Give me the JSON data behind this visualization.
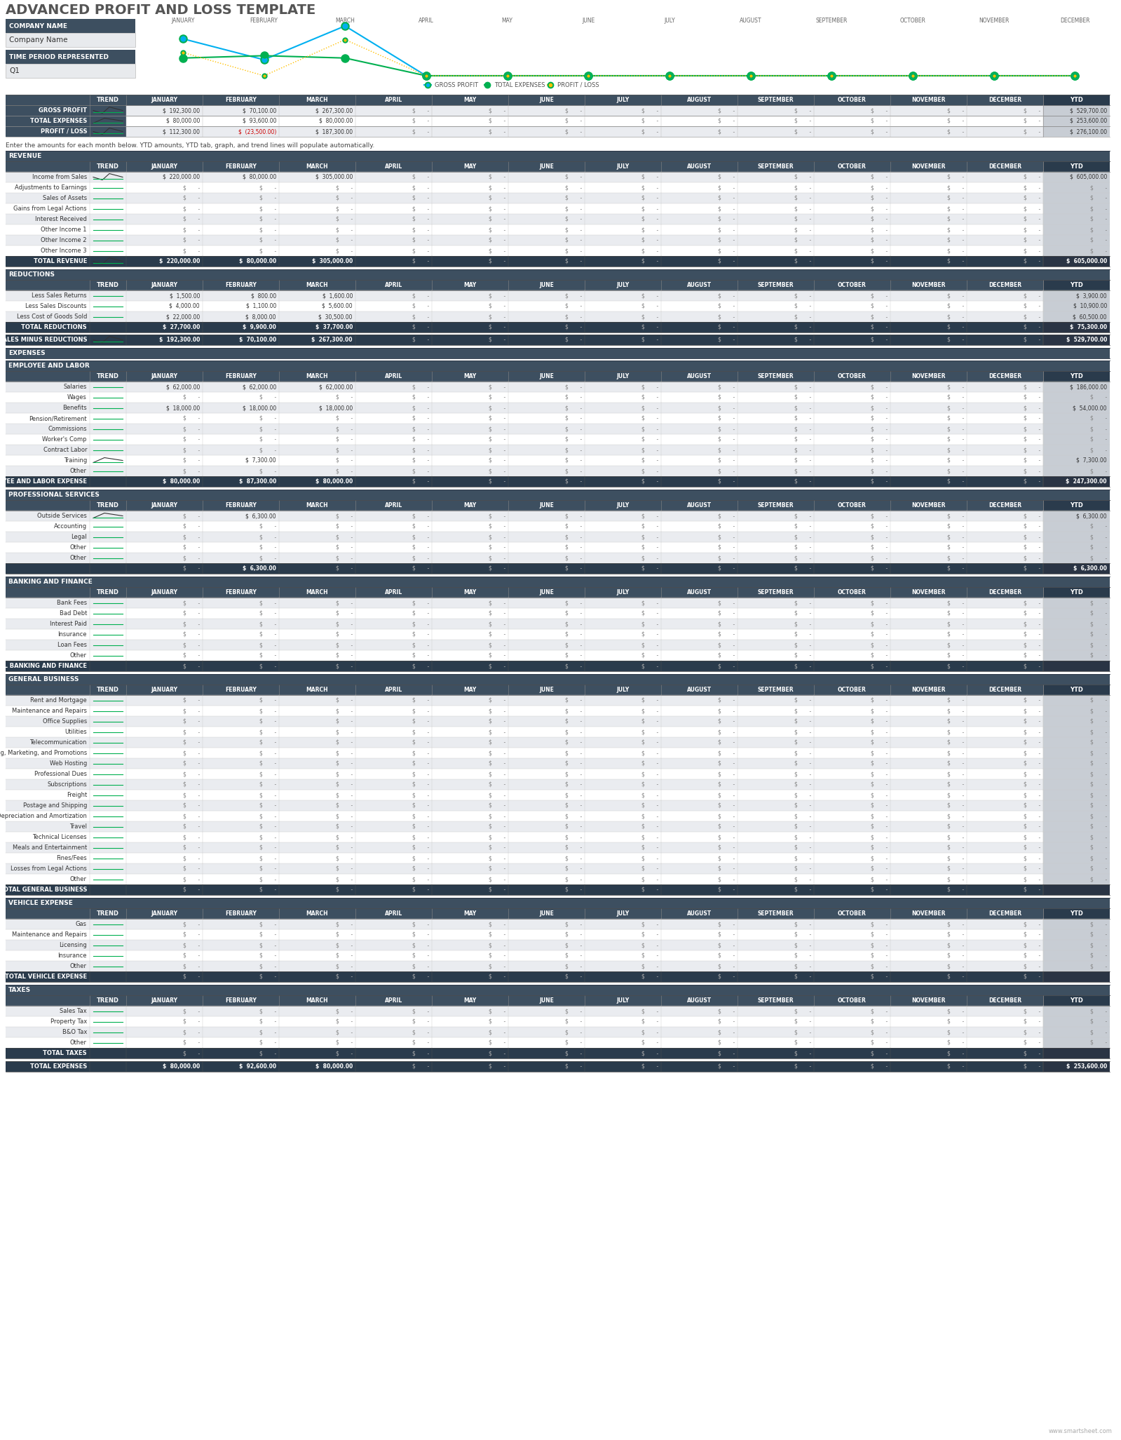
{
  "title": "ADVANCED PROFIT AND LOSS TEMPLATE",
  "months": [
    "JANUARY",
    "FEBRUARY",
    "MARCH",
    "APRIL",
    "MAY",
    "JUNE",
    "JULY",
    "AUGUST",
    "SEPTEMBER",
    "OCTOBER",
    "NOVEMBER",
    "DECEMBER"
  ],
  "col_header_bg": "#3d4f60",
  "col_header_fg": "#ffffff",
  "section_header_bg": "#3d4f60",
  "section_header_fg": "#ffffff",
  "summary_label_bg": "#3d4f60",
  "summary_label_fg": "#ffffff",
  "alt_row_bg": "#eaecf0",
  "white_row_bg": "#ffffff",
  "ytd_bg": "#c8cdd4",
  "ytd_total_bg": "#3d4f60",
  "ytd_total_fg": "#ffffff",
  "company_label_bg": "#3d4f60",
  "company_label_fg": "#ffffff",
  "company_value_bg": "#e8eaed",
  "company_value_fg": "#333333",
  "gross_profit_line": "#00b0f0",
  "total_expenses_line": "#00b050",
  "profit_loss_line": "#ffc000",
  "green_spark": "#00b050",
  "dark_spark": "#333333",
  "red_text": "#cc0000",
  "body_text": "#333333",
  "dim_text": "#888888",
  "grid_color": "#cccccc"
}
